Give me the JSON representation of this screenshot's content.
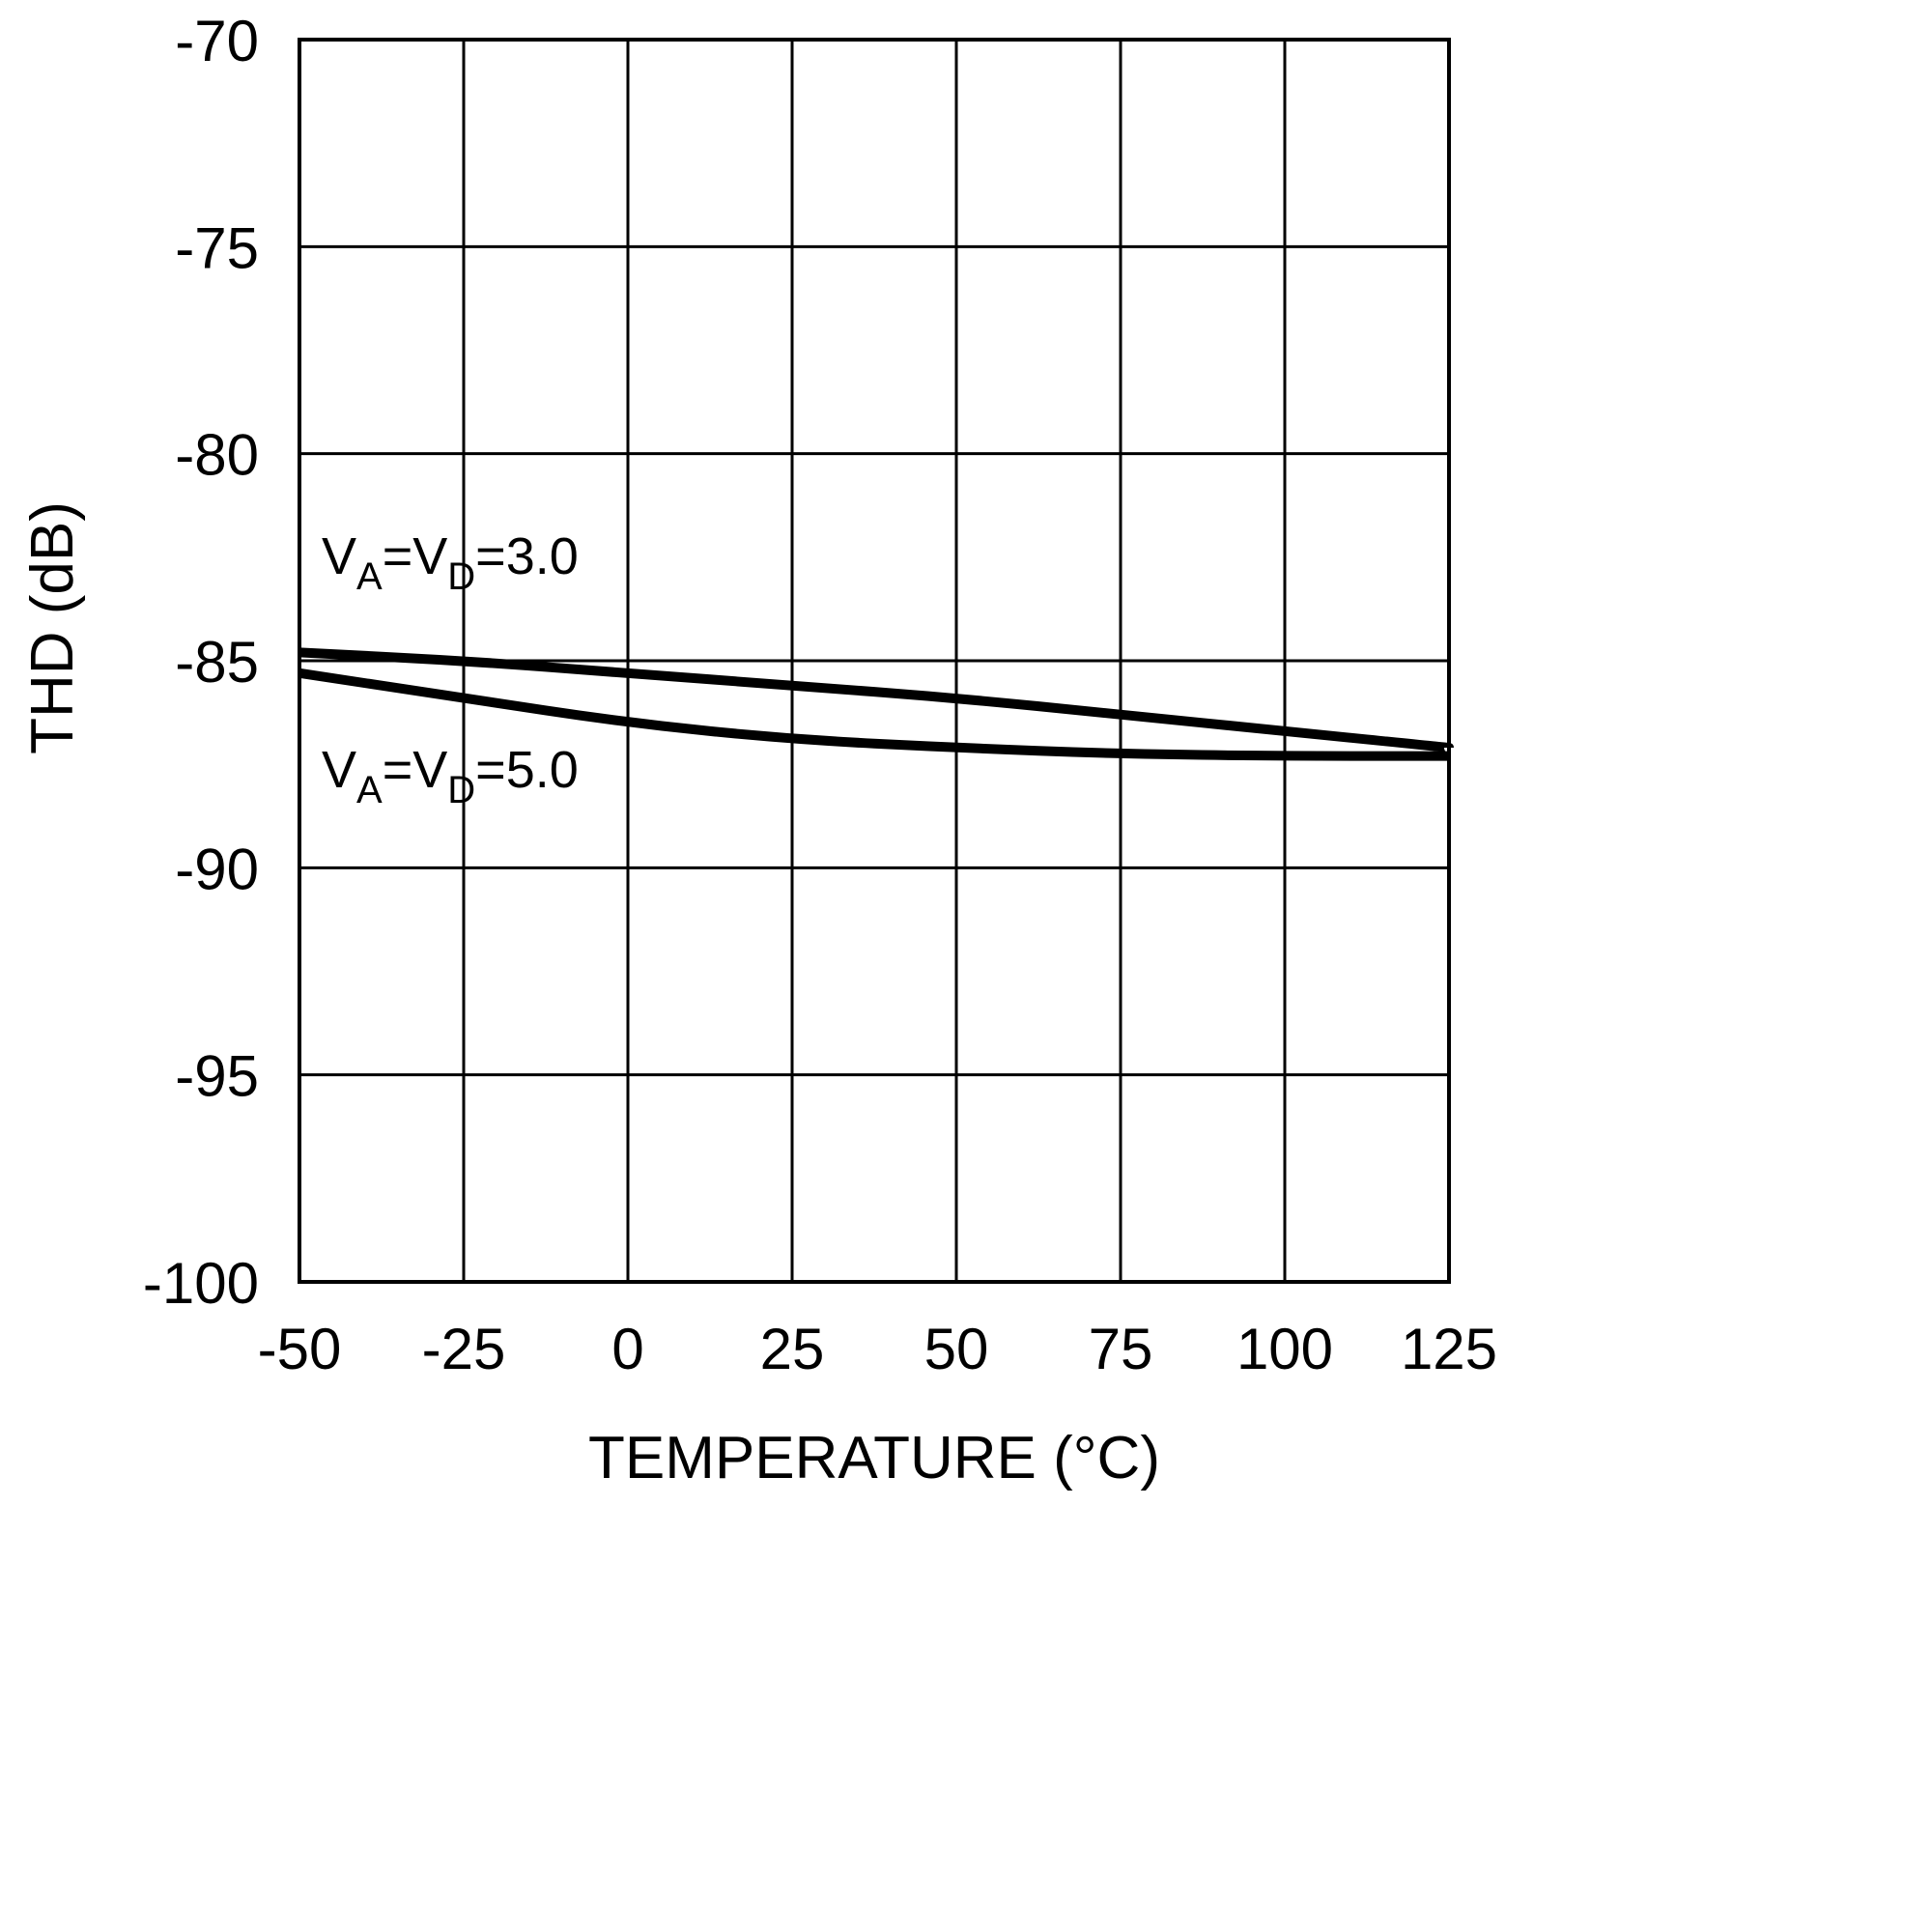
{
  "chart_data": {
    "type": "line",
    "title": "",
    "xlabel": "TEMPERATURE (°C)",
    "ylabel": "THD (dB)",
    "xlim": [
      -50,
      125
    ],
    "ylim": [
      -100,
      -70
    ],
    "xticks": [
      -50,
      -25,
      0,
      25,
      50,
      75,
      100,
      125
    ],
    "yticks": [
      -100,
      -95,
      -90,
      -85,
      -80,
      -75,
      -70
    ],
    "xtick_labels": [
      "-50",
      "-25",
      "0",
      "25",
      "50",
      "75",
      "100",
      "125"
    ],
    "ytick_labels": [
      "-100",
      "-95",
      "-90",
      "-85",
      "-80",
      "-75",
      "-70"
    ],
    "grid": true,
    "series": [
      {
        "name": "VA=VD=3.0",
        "label_main_1": "V",
        "label_sub_1": "A",
        "label_main_2": "=V",
        "label_sub_2": "D",
        "label_main_3": "=3.0",
        "x": [
          -50,
          -25,
          0,
          25,
          50,
          75,
          100,
          125
        ],
        "y": [
          -84.8,
          -85.0,
          -85.3,
          -85.6,
          -85.9,
          -86.3,
          -86.7,
          -87.1
        ]
      },
      {
        "name": "VA=VD=5.0",
        "label_main_1": "V",
        "label_sub_1": "A",
        "label_main_2": "=V",
        "label_sub_2": "D",
        "label_main_3": "=5.0",
        "x": [
          -50,
          -25,
          0,
          25,
          50,
          75,
          100,
          125
        ],
        "y": [
          -85.3,
          -85.9,
          -86.5,
          -86.9,
          -87.1,
          -87.25,
          -87.3,
          -87.3
        ]
      }
    ],
    "colors": {
      "line": "#000000",
      "grid": "#000000",
      "background": "#ffffff"
    }
  }
}
